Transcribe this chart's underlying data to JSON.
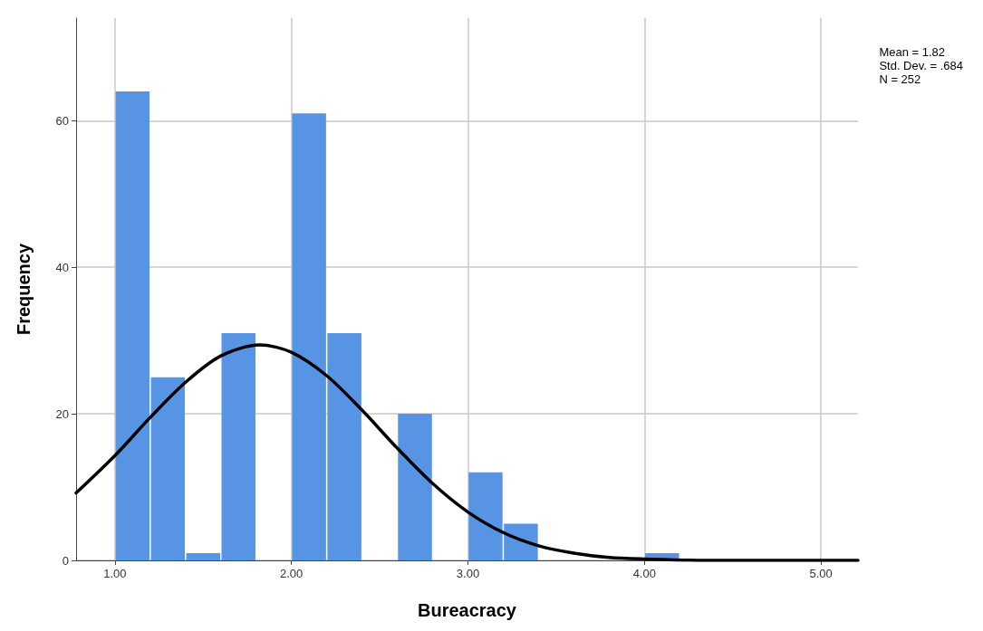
{
  "chart_data": {
    "type": "histogram",
    "xlabel": "Bureacracy",
    "ylabel": "Frequency",
    "bins": [
      1.0,
      1.2,
      1.4,
      1.6,
      1.8,
      2.0,
      2.2,
      2.4,
      2.6,
      2.8,
      3.0,
      3.2,
      3.4,
      3.6,
      3.8,
      4.0,
      4.2
    ],
    "values": [
      64,
      25,
      1,
      31,
      0,
      61,
      31,
      0,
      20,
      0,
      12,
      5,
      0,
      0,
      0,
      1
    ],
    "color": "#5794e3",
    "series": [
      {
        "type": "line",
        "color": "#000000",
        "x": [
          0.78,
          1.0,
          1.2,
          1.4,
          1.6,
          1.82,
          2.0,
          2.2,
          2.4,
          2.6,
          2.8,
          3.0,
          3.2,
          3.4,
          3.6,
          3.8,
          4.0,
          4.4,
          4.8,
          5.21
        ],
        "values": [
          9.2,
          14.3,
          19.5,
          24.3,
          27.9,
          29.4,
          28.4,
          25.2,
          20.5,
          15.3,
          10.5,
          6.6,
          3.8,
          2.0,
          1.0,
          0.4,
          0.2,
          0,
          0,
          0
        ]
      }
    ],
    "marker": "none",
    "xlim": [
      0.78,
      5.21
    ],
    "xticks": [
      {
        "value": 1,
        "label": "1.00"
      },
      {
        "value": 2,
        "label": "2.00"
      },
      {
        "value": 3,
        "label": "3.00"
      },
      {
        "value": 4,
        "label": "4.00"
      },
      {
        "value": 5,
        "label": "5.00"
      }
    ],
    "ylim": [
      0,
      74
    ],
    "yticks": [
      0,
      20,
      40,
      60
    ],
    "grid": true,
    "annotations": [
      "Mean = 1.82",
      "Std. Dev. = .684",
      "N = 252"
    ]
  }
}
